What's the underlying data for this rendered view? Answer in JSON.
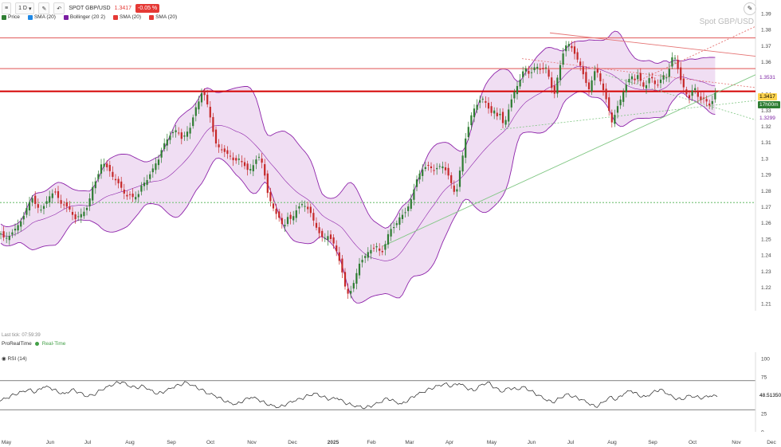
{
  "toolbar": {
    "menu_icon": "hamburger-icon",
    "period": "1 D",
    "symbol": "SPOT GBP/USD",
    "last": "1.3417",
    "change": "-0.05 %",
    "legend": [
      {
        "label": "Price",
        "color": "#2e7d32"
      },
      {
        "label": "SMA (20)",
        "color": "#1e88e5"
      },
      {
        "label": "Bollinger (20 2)",
        "color": "#7b1fa2"
      },
      {
        "label": "SMA (20)",
        "color": "#e53935"
      },
      {
        "label": "SMA (20)",
        "color": "#e53935"
      }
    ]
  },
  "watermark": "Spot GBP/USD",
  "status": {
    "last_tick": "Last tick: 07:59:39",
    "provider": "ProRealTime",
    "mode": "Real-Time"
  },
  "price_tags": {
    "last": "1.3417",
    "countdown": "17h00m",
    "upper_band": "1.3531",
    "lower_band": "1.3299"
  },
  "rsi": {
    "label": "RSI (14)",
    "value": "48.51350"
  },
  "chart_data": [
    {
      "type": "candlestick",
      "title": "Spot GBP/USD",
      "ylim": [
        1.2,
        1.39
      ],
      "y_ticks": [
        "1.39",
        "1.38",
        "1.37",
        "1.36",
        "1.35",
        "1.34",
        "1.33",
        "1.32",
        "1.31",
        "1.3",
        "1.29",
        "1.28",
        "1.27",
        "1.26",
        "1.25",
        "1.24",
        "1.23",
        "1.22",
        "1.21",
        "1.2"
      ],
      "x_ticks": [
        "May",
        "Jun",
        "Jul",
        "Aug",
        "Sep",
        "Oct",
        "Nov",
        "Dec",
        "2025",
        "Feb",
        "Mar",
        "Apr",
        "May",
        "Jun",
        "Jul",
        "Aug",
        "Sep",
        "Oct",
        "Nov",
        "Dec"
      ],
      "close_path": [
        [
          0,
          1.254
        ],
        [
          6,
          1.25
        ],
        [
          12,
          1.252
        ],
        [
          20,
          1.257
        ],
        [
          28,
          1.262
        ],
        [
          34,
          1.27
        ],
        [
          40,
          1.276
        ],
        [
          46,
          1.27
        ],
        [
          52,
          1.268
        ],
        [
          58,
          1.273
        ],
        [
          64,
          1.278
        ],
        [
          70,
          1.279
        ],
        [
          76,
          1.272
        ],
        [
          82,
          1.271
        ],
        [
          88,
          1.268
        ],
        [
          94,
          1.262
        ],
        [
          100,
          1.265
        ],
        [
          104,
          1.266
        ],
        [
          110,
          1.27
        ],
        [
          116,
          1.282
        ],
        [
          122,
          1.288
        ],
        [
          128,
          1.298
        ],
        [
          132,
          1.296
        ],
        [
          138,
          1.292
        ],
        [
          142,
          1.288
        ],
        [
          148,
          1.285
        ],
        [
          152,
          1.282
        ],
        [
          158,
          1.276
        ],
        [
          164,
          1.278
        ],
        [
          168,
          1.275
        ],
        [
          174,
          1.278
        ],
        [
          178,
          1.284
        ],
        [
          184,
          1.286
        ],
        [
          188,
          1.29
        ],
        [
          194,
          1.296
        ],
        [
          200,
          1.3
        ],
        [
          204,
          1.308
        ],
        [
          210,
          1.312
        ],
        [
          216,
          1.316
        ],
        [
          222,
          1.318
        ],
        [
          228,
          1.312
        ],
        [
          234,
          1.316
        ],
        [
          240,
          1.32
        ],
        [
          244,
          1.33
        ],
        [
          250,
          1.336
        ],
        [
          254,
          1.342
        ],
        [
          258,
          1.338
        ],
        [
          262,
          1.33
        ],
        [
          266,
          1.32
        ],
        [
          270,
          1.31
        ],
        [
          276,
          1.306
        ],
        [
          282,
          1.304
        ],
        [
          288,
          1.302
        ],
        [
          294,
          1.298
        ],
        [
          300,
          1.3
        ],
        [
          306,
          1.296
        ],
        [
          312,
          1.292
        ],
        [
          318,
          1.296
        ],
        [
          324,
          1.302
        ],
        [
          330,
          1.296
        ],
        [
          336,
          1.278
        ],
        [
          342,
          1.27
        ],
        [
          346,
          1.266
        ],
        [
          352,
          1.262
        ],
        [
          356,
          1.256
        ],
        [
          360,
          1.264
        ],
        [
          366,
          1.262
        ],
        [
          372,
          1.268
        ],
        [
          378,
          1.272
        ],
        [
          384,
          1.27
        ],
        [
          390,
          1.266
        ],
        [
          396,
          1.258
        ],
        [
          400,
          1.254
        ],
        [
          406,
          1.25
        ],
        [
          412,
          1.252
        ],
        [
          418,
          1.248
        ],
        [
          424,
          1.24
        ],
        [
          430,
          1.228
        ],
        [
          434,
          1.218
        ],
        [
          438,
          1.215
        ],
        [
          442,
          1.22
        ],
        [
          446,
          1.226
        ],
        [
          450,
          1.234
        ],
        [
          456,
          1.238
        ],
        [
          462,
          1.242
        ],
        [
          468,
          1.244
        ],
        [
          474,
          1.246
        ],
        [
          478,
          1.24
        ],
        [
          482,
          1.244
        ],
        [
          486,
          1.252
        ],
        [
          490,
          1.256
        ],
        [
          496,
          1.258
        ],
        [
          502,
          1.264
        ],
        [
          508,
          1.266
        ],
        [
          514,
          1.272
        ],
        [
          518,
          1.278
        ],
        [
          522,
          1.286
        ],
        [
          528,
          1.292
        ],
        [
          532,
          1.294
        ],
        [
          538,
          1.296
        ],
        [
          544,
          1.292
        ],
        [
          548,
          1.294
        ],
        [
          554,
          1.296
        ],
        [
          560,
          1.292
        ],
        [
          564,
          1.288
        ],
        [
          568,
          1.282
        ],
        [
          572,
          1.276
        ],
        [
          576,
          1.29
        ],
        [
          580,
          1.3
        ],
        [
          584,
          1.312
        ],
        [
          588,
          1.32
        ],
        [
          592,
          1.328
        ],
        [
          596,
          1.332
        ],
        [
          600,
          1.334
        ],
        [
          604,
          1.338
        ],
        [
          608,
          1.336
        ],
        [
          612,
          1.332
        ],
        [
          616,
          1.328
        ],
        [
          620,
          1.33
        ],
        [
          624,
          1.326
        ],
        [
          628,
          1.328
        ],
        [
          632,
          1.32
        ],
        [
          636,
          1.326
        ],
        [
          640,
          1.334
        ],
        [
          644,
          1.34
        ],
        [
          648,
          1.344
        ],
        [
          652,
          1.348
        ],
        [
          656,
          1.354
        ],
        [
          660,
          1.356
        ],
        [
          664,
          1.352
        ],
        [
          668,
          1.354
        ],
        [
          672,
          1.358
        ],
        [
          676,
          1.356
        ],
        [
          680,
          1.354
        ],
        [
          684,
          1.358
        ],
        [
          688,
          1.352
        ],
        [
          692,
          1.344
        ],
        [
          696,
          1.34
        ],
        [
          700,
          1.352
        ],
        [
          704,
          1.36
        ],
        [
          708,
          1.368
        ],
        [
          712,
          1.372
        ],
        [
          716,
          1.37
        ],
        [
          720,
          1.366
        ],
        [
          724,
          1.362
        ],
        [
          728,
          1.358
        ],
        [
          732,
          1.352
        ],
        [
          736,
          1.346
        ],
        [
          740,
          1.342
        ],
        [
          744,
          1.352
        ],
        [
          748,
          1.356
        ],
        [
          752,
          1.35
        ],
        [
          756,
          1.344
        ],
        [
          760,
          1.338
        ],
        [
          764,
          1.33
        ],
        [
          768,
          1.322
        ],
        [
          772,
          1.328
        ],
        [
          776,
          1.334
        ],
        [
          780,
          1.338
        ],
        [
          784,
          1.344
        ],
        [
          788,
          1.348
        ],
        [
          792,
          1.352
        ],
        [
          796,
          1.348
        ],
        [
          800,
          1.352
        ],
        [
          804,
          1.348
        ],
        [
          808,
          1.344
        ],
        [
          812,
          1.346
        ],
        [
          816,
          1.352
        ],
        [
          820,
          1.348
        ],
        [
          824,
          1.344
        ],
        [
          828,
          1.348
        ],
        [
          832,
          1.352
        ],
        [
          836,
          1.35
        ],
        [
          840,
          1.356
        ],
        [
          844,
          1.364
        ],
        [
          848,
          1.362
        ],
        [
          852,
          1.352
        ],
        [
          856,
          1.346
        ],
        [
          860,
          1.342
        ],
        [
          864,
          1.336
        ],
        [
          868,
          1.342
        ],
        [
          872,
          1.344
        ],
        [
          876,
          1.338
        ],
        [
          880,
          1.336
        ],
        [
          884,
          1.338
        ],
        [
          888,
          1.334
        ],
        [
          892,
          1.332
        ],
        [
          896,
          1.34
        ],
        [
          900,
          1.342
        ]
      ],
      "horizontal_levels": [
        {
          "value": 1.3417,
          "color": "#d50000"
        },
        {
          "value": 1.3749,
          "color": "#e57373"
        },
        {
          "value": 1.3558,
          "color": "#e57373"
        },
        {
          "value": 1.2726,
          "color": "#81c784",
          "style": "dashed"
        },
        {
          "value": 1.2035,
          "color": "#43a047",
          "style": "dashed"
        }
      ],
      "last_value": 1.3417,
      "upper_band": 1.3531,
      "lower_band": 1.3299
    },
    {
      "type": "line",
      "title": "RSI (14)",
      "ylim": [
        0,
        100
      ],
      "y_ticks": [
        "100",
        "75",
        "50",
        "25",
        "0"
      ],
      "levels": [
        70,
        30
      ],
      "last_value": 48.5135,
      "values": [
        42,
        46,
        51,
        55,
        58,
        54,
        61,
        60,
        55,
        52,
        58,
        54,
        48,
        50,
        57,
        62,
        66,
        68,
        62,
        60,
        63,
        57,
        52,
        55,
        60,
        64,
        68,
        63,
        58,
        52,
        49,
        44,
        40,
        38,
        43,
        47,
        44,
        39,
        36,
        34,
        38,
        42,
        45,
        50,
        53,
        48,
        44,
        46,
        40,
        37,
        35,
        33,
        36,
        40,
        46,
        42,
        38,
        44,
        50,
        54,
        59,
        63,
        66,
        62,
        66,
        60,
        56,
        64,
        68,
        60,
        54,
        60,
        58,
        62,
        56,
        50,
        44,
        40,
        46,
        52,
        48,
        44,
        39,
        34,
        40,
        48,
        44,
        52,
        56,
        50,
        48,
        54,
        58,
        52,
        46,
        44,
        50,
        48,
        46,
        49,
        48
      ]
    }
  ]
}
